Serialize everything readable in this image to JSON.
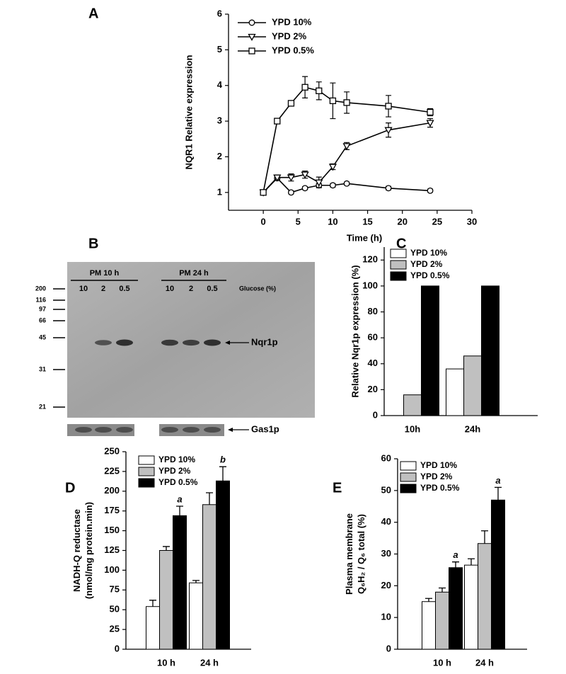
{
  "chart_data": [
    {
      "type": "line",
      "panel": "A",
      "x_label": "Time (h)",
      "y_label": [
        "NQR1 Relative expression"
      ],
      "x": [
        0,
        2,
        4,
        6,
        8,
        10,
        12,
        18,
        24
      ],
      "xlim": [
        -5,
        30
      ],
      "xticks": [
        0,
        5,
        10,
        15,
        20,
        25,
        30
      ],
      "ylim": [
        0.5,
        6
      ],
      "yticks": [
        1,
        2,
        3,
        4,
        5,
        6
      ],
      "legend": "top-left",
      "series": [
        {
          "name": "YPD 10%",
          "color": "#000000",
          "marker": "circle",
          "values": [
            1,
            1.4,
            1.0,
            1.12,
            1.2,
            1.2,
            1.25,
            1.12,
            1.05
          ],
          "errors": [
            0.04,
            0.05,
            0.04,
            0.04,
            0.05,
            0.05,
            0.04,
            0.05,
            0.04
          ]
        },
        {
          "name": "YPD 2%",
          "color": "#000000",
          "marker": "triangle",
          "values": [
            1,
            1.42,
            1.42,
            1.5,
            1.28,
            1.72,
            2.3,
            2.75,
            2.95
          ],
          "errors": [
            0.05,
            0.05,
            0.1,
            0.1,
            0.15,
            0.08,
            0.1,
            0.2,
            0.12
          ]
        },
        {
          "name": "YPD 0.5%",
          "color": "#000000",
          "marker": "square",
          "values": [
            1,
            3.0,
            3.5,
            3.95,
            3.85,
            3.57,
            3.52,
            3.42,
            3.25
          ],
          "errors": [
            0.05,
            0.05,
            0.05,
            0.3,
            0.25,
            0.5,
            0.3,
            0.3,
            0.1
          ]
        }
      ]
    },
    {
      "type": "bar",
      "panel": "C",
      "y_label": [
        "Relative Nqr1p expression (%)"
      ],
      "categories": [
        "10h",
        "24h"
      ],
      "ylim": [
        0,
        130
      ],
      "yticks": [
        0,
        20,
        40,
        60,
        80,
        100,
        120
      ],
      "legend": "top-left",
      "series": [
        {
          "name": "YPD 10%",
          "color": "#ffffff",
          "values": [
            0,
            36
          ]
        },
        {
          "name": "YPD 2%",
          "color": "#c0c0c0",
          "values": [
            16,
            46
          ]
        },
        {
          "name": "YPD 0.5%",
          "color": "#000000",
          "values": [
            100,
            100
          ]
        }
      ]
    },
    {
      "type": "bar",
      "panel": "D",
      "y_label": [
        "NADH-Q reductase",
        "(nmol/mg protein.min)"
      ],
      "categories": [
        "10 h",
        "24 h"
      ],
      "ylim": [
        0,
        250
      ],
      "yticks": [
        0,
        25,
        50,
        75,
        100,
        125,
        150,
        175,
        200,
        225,
        250
      ],
      "legend": "top-left",
      "series": [
        {
          "name": "YPD 10%",
          "color": "#ffffff",
          "values": [
            54,
            84
          ],
          "errors": [
            8,
            3
          ]
        },
        {
          "name": "YPD 2%",
          "color": "#c0c0c0",
          "values": [
            125,
            183
          ],
          "errors": [
            5,
            15
          ]
        },
        {
          "name": "YPD 0.5%",
          "color": "#000000",
          "values": [
            169,
            213
          ],
          "errors": [
            12,
            18
          ]
        }
      ],
      "annotations": [
        {
          "text": "a",
          "category": "10 h",
          "series": "YPD 0.5%"
        },
        {
          "text": "b",
          "category": "24 h",
          "series": "YPD 0.5%"
        }
      ]
    },
    {
      "type": "bar",
      "panel": "E",
      "y_label": [
        "Plasma membrane",
        "Q₆H₂ / Q₆ total (%)"
      ],
      "categories": [
        "10 h",
        "24 h"
      ],
      "ylim": [
        0,
        60
      ],
      "yticks": [
        0,
        10,
        20,
        30,
        40,
        50,
        60
      ],
      "legend": "top-left",
      "series": [
        {
          "name": "YPD 10%",
          "color": "#ffffff",
          "values": [
            15,
            26.5
          ],
          "errors": [
            1,
            2
          ]
        },
        {
          "name": "YPD 2%",
          "color": "#c0c0c0",
          "values": [
            18,
            33.3
          ],
          "errors": [
            1.3,
            4
          ]
        },
        {
          "name": "YPD 0.5%",
          "color": "#000000",
          "values": [
            25.7,
            47
          ],
          "errors": [
            1.8,
            4
          ]
        }
      ],
      "annotations": [
        {
          "text": "a",
          "category": "10 h",
          "series": "YPD 0.5%"
        },
        {
          "text": "a",
          "category": "24 h",
          "series": "YPD 0.5%"
        }
      ]
    }
  ],
  "blot": {
    "panel": "B",
    "groups": [
      "PM 10 h",
      "PM 24 h"
    ],
    "lanes": [
      "10",
      "2",
      "0.5",
      "10",
      "2",
      "0.5"
    ],
    "lane_title": "Glucose (%)",
    "markers": [
      "200",
      "116",
      "97",
      "66",
      "45",
      "31",
      "21"
    ],
    "band_label": "Nqr1p",
    "control_label": "Gas1p"
  }
}
